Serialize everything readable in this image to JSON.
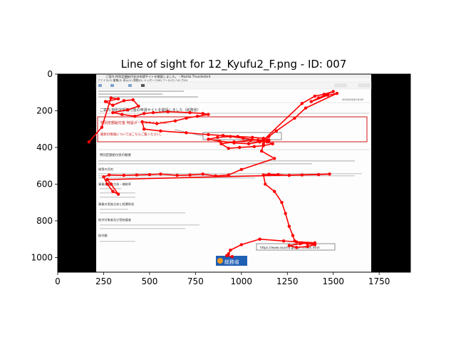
{
  "chart_data": {
    "type": "scatter",
    "title": "Line of sight for 12_Kyufu2_F.png - ID: 007",
    "xlabel": "",
    "ylabel": "",
    "xlim": [
      0,
      1920
    ],
    "ylim": [
      1080,
      0
    ],
    "y_inverted": true,
    "grid": false,
    "x_ticks": [
      0,
      250,
      500,
      750,
      1000,
      1250,
      1500,
      1750
    ],
    "y_ticks": [
      0,
      200,
      400,
      600,
      800,
      1000
    ],
    "line_color": "#ff0000",
    "marker_color": "#ff0000",
    "background_image": "screenshot of a Japanese government email page (Thunderbird) with black letterbox bars",
    "series": [
      {
        "x": [
          170,
          240,
          290,
          330,
          260,
          300,
          360,
          410,
          440,
          380,
          300,
          350,
          420,
          470,
          520,
          600,
          720,
          790,
          820,
          760,
          700,
          640,
          540,
          460,
          470,
          560,
          700,
          820,
          900,
          980,
          1060,
          1120,
          1150,
          1100,
          1040,
          960,
          880,
          820,
          870,
          940,
          1010,
          1090,
          1140,
          1170,
          1120,
          1070,
          990,
          930,
          890,
          960,
          1050,
          1120,
          1330,
          1400,
          1450,
          1500,
          1420,
          1380,
          1470,
          1520,
          1350,
          1290,
          1190,
          1150,
          1120,
          1110,
          1180,
          1000,
          930,
          860,
          790,
          720,
          650,
          560,
          500,
          430,
          360,
          280,
          250,
          270,
          300,
          330,
          290,
          270,
          1480,
          1420,
          1330,
          1260,
          1200,
          1150,
          1120,
          1130,
          1180,
          1220,
          1240,
          1260,
          1280,
          1290,
          1300,
          1330,
          1360,
          1400,
          1360,
          1300,
          1260,
          1320,
          1400,
          1230,
          1100,
          1000,
          940,
          930,
          920,
          950
        ],
        "y": [
          370,
          290,
          130,
          135,
          150,
          170,
          145,
          140,
          175,
          195,
          210,
          220,
          230,
          215,
          210,
          205,
          210,
          215,
          220,
          230,
          240,
          255,
          270,
          260,
          300,
          310,
          320,
          330,
          335,
          340,
          345,
          350,
          360,
          370,
          380,
          375,
          365,
          355,
          345,
          340,
          350,
          360,
          370,
          380,
          390,
          395,
          400,
          405,
          380,
          370,
          360,
          360,
          160,
          120,
          110,
          95,
          130,
          150,
          115,
          105,
          185,
          240,
          310,
          340,
          380,
          420,
          460,
          520,
          550,
          555,
          545,
          550,
          552,
          545,
          548,
          550,
          552,
          550,
          560,
          600,
          640,
          655,
          600,
          575,
          545,
          548,
          550,
          552,
          548,
          546,
          550,
          600,
          640,
          700,
          760,
          830,
          880,
          910,
          915,
          920,
          925,
          930,
          940,
          945,
          935,
          925,
          920,
          910,
          900,
          930,
          960,
          980,
          990,
          995
        ]
      }
    ]
  },
  "screenshot": {
    "window_title": "ご案内 特別定額給付金の申請サイトを開設しました。 - Mozilla Thunderbird",
    "menu": "ファイル(F)  編集(E)  表示(V)  移動(G)  メッセージ(M)  ツール(T)  ヘルプ(H)",
    "date": "2020/04/30 8:45",
    "page_headline": "ご案内 特別定額給付金の申請サイトを開設しました（総務省）",
    "box_line1": "特別定額給付金 特設ポータルサイト ヘル...",
    "box_line2": "最新の情報についてはこちらご覧ください。",
    "section_heading": "特別定額給付金の概要",
    "items": [
      "施策の目的",
      "事業の実施主体・補助率",
      "事業の実施主体と経費負担",
      "給付対象者及び受給権者",
      "給付額"
    ],
    "url_box": "https://www.soumu.go.jp/...index.html",
    "logo": "総務省"
  }
}
